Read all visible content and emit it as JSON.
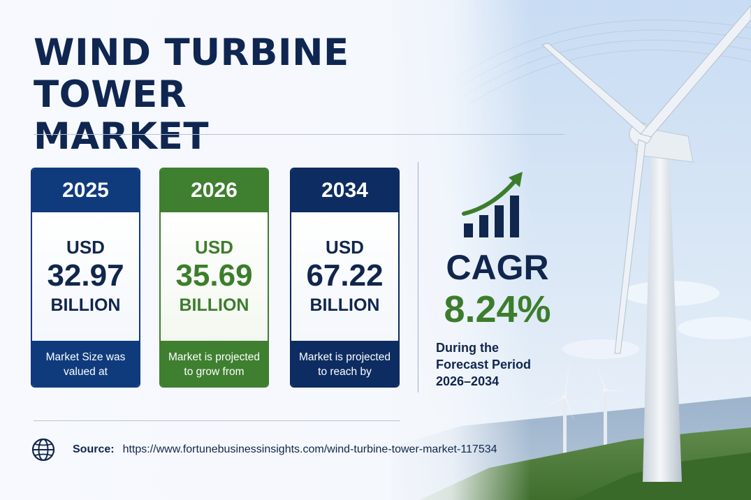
{
  "title": {
    "line1": "WIND TURBINE TOWER",
    "line2": "MARKET"
  },
  "cards": [
    {
      "year": "2025",
      "currency": "USD",
      "value": "32.97",
      "unit": "BILLION",
      "caption_line1": "Market Size was",
      "caption_line2": "valued at"
    },
    {
      "year": "2026",
      "currency": "USD",
      "value": "35.69",
      "unit": "BILLION",
      "caption_line1": "Market is projected",
      "caption_line2": "to grow from"
    },
    {
      "year": "2034",
      "currency": "USD",
      "value": "67.22",
      "unit": "BILLION",
      "caption_line1": "Market is projected",
      "caption_line2": "to reach by"
    }
  ],
  "cagr": {
    "label": "CAGR",
    "value": "8.24%",
    "desc_line1": "During the",
    "desc_line2": "Forecast Period",
    "desc_line3": "2026–2034",
    "icon": "growth-chart-arrow-icon"
  },
  "source": {
    "label": "Source:",
    "url": "https://www.fortunebusinessinsights.com/wind-turbine-tower-market-117534",
    "icon": "globe-icon"
  },
  "colors": {
    "navy": "#0f3b7c",
    "green": "#3f7f30",
    "dark_navy": "#0d2c61",
    "text_dark": "#10264d"
  }
}
